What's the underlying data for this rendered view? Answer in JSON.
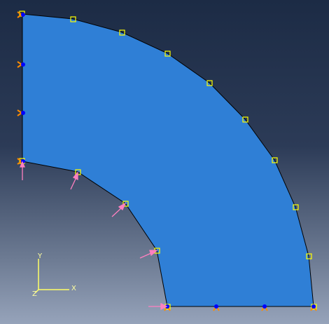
{
  "viewport": {
    "background_top": "#1c2b45",
    "background_bottom": "#96a3ba"
  },
  "part": {
    "fill": "#2f7fd6",
    "edge": "#000000"
  },
  "mesh_seed_color": "#ffff00",
  "boundary_colors": {
    "encastre": "#ff8c00",
    "symmetry": "#0000ff",
    "load": "#ff80c0"
  },
  "triad": {
    "color": "#ffff66",
    "x_label": "X",
    "y_label": "Y",
    "z_label": "Z"
  }
}
